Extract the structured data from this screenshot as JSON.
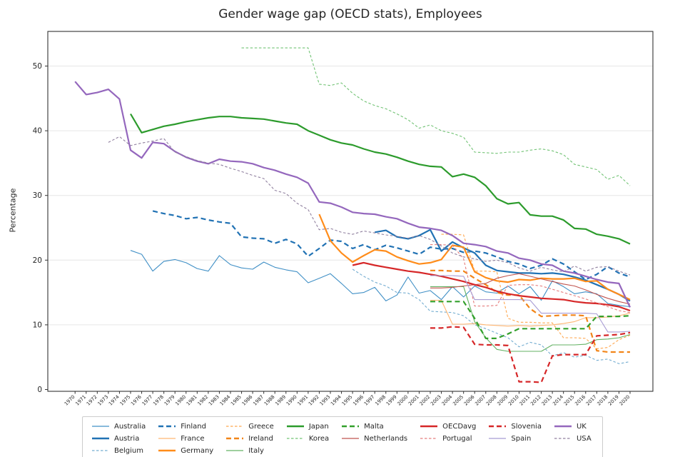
{
  "title": "Gender wage gap (OECD stats), Employees",
  "chart_data": {
    "type": "line",
    "title": "Gender wage gap (OECD stats), Employees",
    "xlabel": "",
    "ylabel": "Percentage",
    "ylim": [
      -0.3,
      55.4
    ],
    "yticks": [
      0,
      10,
      20,
      30,
      40,
      50
    ],
    "grid": "horizontal-only",
    "legend_position": "bottom-outside",
    "years": [
      1970,
      1971,
      1972,
      1973,
      1974,
      1975,
      1976,
      1977,
      1978,
      1979,
      1980,
      1981,
      1982,
      1983,
      1984,
      1985,
      1986,
      1987,
      1988,
      1989,
      1990,
      1991,
      1992,
      1993,
      1994,
      1995,
      1996,
      1997,
      1998,
      1999,
      2000,
      2001,
      2002,
      2003,
      2004,
      2005,
      2006,
      2007,
      2008,
      2009,
      2010,
      2011,
      2012,
      2013,
      2014,
      2015,
      2016,
      2017,
      2018,
      2019,
      2020
    ],
    "legend_columns": [
      [
        "Australia",
        "Austria",
        "Belgium"
      ],
      [
        "Finland",
        "France",
        "Germany"
      ],
      [
        "Greece",
        "Ireland",
        "Italy"
      ],
      [
        "Japan",
        "Korea"
      ],
      [
        "Malta",
        "Netherlands"
      ],
      [
        "OECDavg",
        "Portugal"
      ],
      [
        "Slovenia",
        "Spain"
      ],
      [
        "UK",
        "USA"
      ]
    ],
    "series": [
      {
        "name": "Australia",
        "color": "#4190c6",
        "width": "thin",
        "dash": "solid",
        "start_year": 1975,
        "values": [
          21.5,
          20.9,
          18.3,
          19.8,
          20.1,
          19.6,
          18.7,
          18.3,
          20.7,
          19.3,
          18.8,
          18.6,
          19.7,
          18.9,
          18.5,
          18.2,
          16.5,
          17.2,
          17.9,
          16.4,
          14.8,
          15.0,
          15.8,
          13.7,
          14.6,
          17.4,
          14.9,
          15.3,
          13.9,
          15.9,
          14.3,
          16.0,
          15.1,
          14.9,
          16.0,
          14.8,
          15.9,
          13.8,
          16.8,
          15.9,
          14.8,
          15.1,
          14.8,
          13.3,
          13.0,
          12.8
        ]
      },
      {
        "name": "Austria",
        "color": "#2172b4",
        "width": "thick",
        "dash": "solid",
        "start_year": 1997,
        "values": [
          24.3,
          24.6,
          23.6,
          23.3,
          23.8,
          24.7,
          21.4,
          22.8,
          21.9,
          21.1,
          19.2,
          18.4,
          18.2,
          18.0,
          18.0,
          17.9,
          18.0,
          17.8,
          17.4,
          16.9,
          16.2,
          15.5,
          14.7,
          13.7
        ]
      },
      {
        "name": "Belgium",
        "color": "#74add1",
        "width": "thin",
        "dash": "dashed",
        "start_year": 1995,
        "values": [
          18.6,
          17.5,
          16.6,
          16.0,
          15.0,
          14.9,
          13.9,
          12.1,
          12.0,
          11.9,
          11.4,
          10.0,
          9.4,
          8.7,
          8.0,
          6.6,
          7.3,
          6.9,
          5.2,
          5.7,
          5.0,
          5.3,
          4.5,
          4.7,
          4.0,
          4.3
        ]
      },
      {
        "name": "Finland",
        "color": "#2172b4",
        "width": "thick",
        "dash": "dashed",
        "start_year": 1977,
        "values": [
          27.6,
          27.2,
          26.9,
          26.4,
          26.6,
          26.2,
          25.9,
          25.7,
          23.6,
          23.4,
          23.3,
          22.6,
          23.2,
          22.5,
          20.6,
          21.8,
          23.1,
          22.9,
          21.8,
          22.4,
          21.6,
          22.3,
          21.9,
          21.4,
          20.9,
          22.0,
          21.7,
          21.8,
          21.2,
          21.4,
          21.1,
          20.5,
          19.8,
          19.4,
          18.7,
          19.2,
          20.2,
          19.4,
          18.2,
          17.0,
          17.8,
          19.0,
          18.0,
          17.4
        ]
      },
      {
        "name": "France",
        "color": "#ffb673",
        "width": "thin",
        "dash": "solid",
        "start_year": 2002,
        "values": [
          13.8,
          13.8,
          10.1,
          10.1,
          10.2,
          10.0,
          9.9,
          9.8,
          9.9,
          9.8,
          9.9,
          10.0,
          10.2,
          10.5,
          11.1,
          11.1,
          11.2,
          11.4,
          11.8
        ]
      },
      {
        "name": "Germany",
        "color": "#ff8c1a",
        "width": "thick",
        "dash": "solid",
        "start_year": 1992,
        "values": [
          27.1,
          23.0,
          21.1,
          19.7,
          20.7,
          21.6,
          21.4,
          20.5,
          19.9,
          19.4,
          19.6,
          20.1,
          22.3,
          22.0,
          18.2,
          17.3,
          16.8,
          16.6,
          17.0,
          16.9,
          17.2,
          17.1,
          17.1,
          17.2,
          16.7,
          16.8,
          15.5,
          14.7,
          13.9
        ]
      },
      {
        "name": "Greece",
        "color": "#ffa64d",
        "width": "thin",
        "dash": "dashed",
        "start_year": 2003,
        "values": [
          24.0,
          24.0,
          23.9,
          18.3,
          18.3,
          18.2,
          11.0,
          10.4,
          10.4,
          10.3,
          10.3,
          8.0,
          8.0,
          7.9,
          6.3,
          6.5,
          7.7,
          8.4
        ]
      },
      {
        "name": "Ireland",
        "color": "#f28518",
        "width": "thick",
        "dash": "dashed",
        "start_year": 2002,
        "values": [
          18.4,
          18.4,
          18.3,
          18.3,
          17.2,
          16.2,
          15.0,
          14.6,
          14.6,
          12.5,
          11.3,
          11.4,
          11.5,
          11.5,
          11.4,
          6.0,
          5.8,
          5.8,
          5.8
        ]
      },
      {
        "name": "Italy",
        "color": "#63b263",
        "width": "thin",
        "dash": "solid",
        "start_year": 2002,
        "values": [
          15.9,
          15.9,
          15.9,
          15.9,
          10.5,
          8.0,
          6.2,
          5.9,
          5.9,
          5.9,
          5.9,
          6.9,
          6.9,
          6.9,
          7.0,
          7.7,
          7.8,
          8.0,
          8.5
        ]
      },
      {
        "name": "Japan",
        "color": "#2c9b2c",
        "width": "thick",
        "dash": "solid",
        "start_year": 1975,
        "values": [
          42.6,
          39.7,
          40.2,
          40.7,
          41.0,
          41.4,
          41.7,
          42.0,
          42.2,
          42.2,
          42.0,
          41.9,
          41.8,
          41.5,
          41.2,
          41.0,
          40.0,
          39.3,
          38.6,
          38.1,
          37.8,
          37.2,
          36.7,
          36.4,
          35.9,
          35.3,
          34.8,
          34.5,
          34.4,
          32.9,
          33.3,
          32.8,
          31.5,
          29.5,
          28.7,
          28.9,
          27.0,
          26.8,
          26.8,
          26.2,
          24.9,
          24.8,
          24.0,
          23.7,
          23.3,
          22.5
        ]
      },
      {
        "name": "Korea",
        "color": "#72c375",
        "width": "thin",
        "dash": "dashed",
        "start_year": 1985,
        "values": [
          52.8,
          52.8,
          52.8,
          52.8,
          52.8,
          52.8,
          52.8,
          47.2,
          47.0,
          47.4,
          45.8,
          44.6,
          43.9,
          43.4,
          42.6,
          41.7,
          40.4,
          40.9,
          40.0,
          39.6,
          39.0,
          36.7,
          36.6,
          36.5,
          36.7,
          36.7,
          37.0,
          37.2,
          36.9,
          36.3,
          34.8,
          34.4,
          34.0,
          32.5,
          33.1,
          31.5
        ]
      },
      {
        "name": "Malta",
        "color": "#33a02c",
        "width": "thick",
        "dash": "dashed",
        "start_year": 2002,
        "values": [
          13.6,
          13.6,
          13.6,
          13.6,
          11.0,
          7.9,
          7.9,
          8.6,
          9.4,
          9.4,
          9.4,
          9.4,
          9.4,
          9.4,
          9.4,
          11.3,
          11.3,
          11.3,
          11.4
        ]
      },
      {
        "name": "Netherlands",
        "color": "#c0544f",
        "width": "thin",
        "dash": "solid",
        "start_year": 2002,
        "values": [
          15.7,
          15.7,
          15.8,
          16.0,
          16.2,
          16.4,
          17.2,
          17.6,
          17.9,
          17.5,
          17.1,
          16.7,
          16.3,
          16.0,
          15.4,
          14.7,
          14.1,
          13.6,
          13.2
        ]
      },
      {
        "name": "OECDavg",
        "color": "#d62728",
        "width": "thick",
        "dash": "solid",
        "start_year": 1995,
        "values": [
          19.2,
          19.6,
          19.2,
          18.9,
          18.6,
          18.3,
          18.1,
          17.8,
          17.5,
          17.1,
          16.7,
          16.2,
          15.8,
          15.2,
          14.8,
          14.5,
          14.3,
          14.1,
          14.0,
          13.9,
          13.6,
          13.4,
          13.3,
          13.1,
          12.8,
          12.2
        ]
      },
      {
        "name": "Portugal",
        "color": "#e57d7d",
        "width": "thin",
        "dash": "dashed",
        "start_year": 2002,
        "values": [
          22.4,
          22.4,
          22.3,
          20.2,
          12.9,
          12.9,
          13.0,
          16.1,
          16.2,
          16.2,
          16.0,
          15.5,
          15.0,
          14.5,
          14.0,
          13.4,
          12.8,
          12.2,
          11.9
        ]
      },
      {
        "name": "Slovenia",
        "color": "#d62728",
        "width": "thick",
        "dash": "dashed",
        "start_year": 2002,
        "values": [
          9.5,
          9.5,
          9.7,
          9.6,
          7.0,
          6.9,
          6.9,
          6.8,
          1.2,
          1.2,
          1.1,
          5.2,
          5.4,
          5.4,
          5.4,
          8.3,
          8.4,
          8.5,
          8.8
        ]
      },
      {
        "name": "Spain",
        "color": "#a89cd4",
        "width": "thin",
        "dash": "solid",
        "start_year": 2002,
        "values": [
          17.6,
          17.6,
          17.6,
          17.5,
          13.9,
          13.9,
          13.9,
          13.9,
          13.9,
          13.8,
          11.8,
          11.8,
          11.8,
          11.8,
          11.8,
          11.7,
          8.9,
          8.9,
          9.0
        ]
      },
      {
        "name": "UK",
        "color": "#9467bd",
        "width": "thick",
        "dash": "solid",
        "start_year": 1970,
        "values": [
          47.6,
          45.6,
          45.9,
          46.4,
          44.9,
          37.0,
          35.8,
          38.2,
          38.0,
          36.8,
          35.9,
          35.3,
          34.9,
          35.6,
          35.3,
          35.2,
          34.9,
          34.3,
          33.9,
          33.3,
          32.8,
          31.9,
          29.0,
          28.8,
          28.2,
          27.4,
          27.2,
          27.1,
          26.7,
          26.4,
          25.7,
          25.1,
          24.9,
          24.6,
          23.8,
          22.6,
          22.4,
          22.1,
          21.4,
          21.1,
          20.3,
          20.0,
          19.4,
          19.2,
          18.3,
          18.0,
          17.5,
          17.0,
          16.6,
          16.4,
          12.7
        ]
      },
      {
        "name": "USA",
        "color": "#90809f",
        "width": "thin",
        "dash": "dashed",
        "start_year": 1973,
        "values": [
          38.2,
          39.1,
          37.7,
          38.1,
          38.4,
          38.8,
          36.7,
          36.0,
          35.4,
          35.0,
          34.8,
          34.2,
          33.7,
          33.1,
          32.6,
          30.8,
          30.3,
          28.8,
          27.8,
          24.7,
          24.9,
          24.3,
          24.0,
          24.5,
          24.2,
          23.9,
          23.7,
          23.4,
          23.8,
          23.2,
          22.2,
          21.1,
          20.5,
          20.2,
          19.8,
          20.0,
          19.6,
          18.8,
          18.3,
          18.9,
          18.5,
          18.2,
          19.1,
          18.3,
          18.9,
          19.0,
          18.3,
          17.7
        ]
      }
    ]
  }
}
